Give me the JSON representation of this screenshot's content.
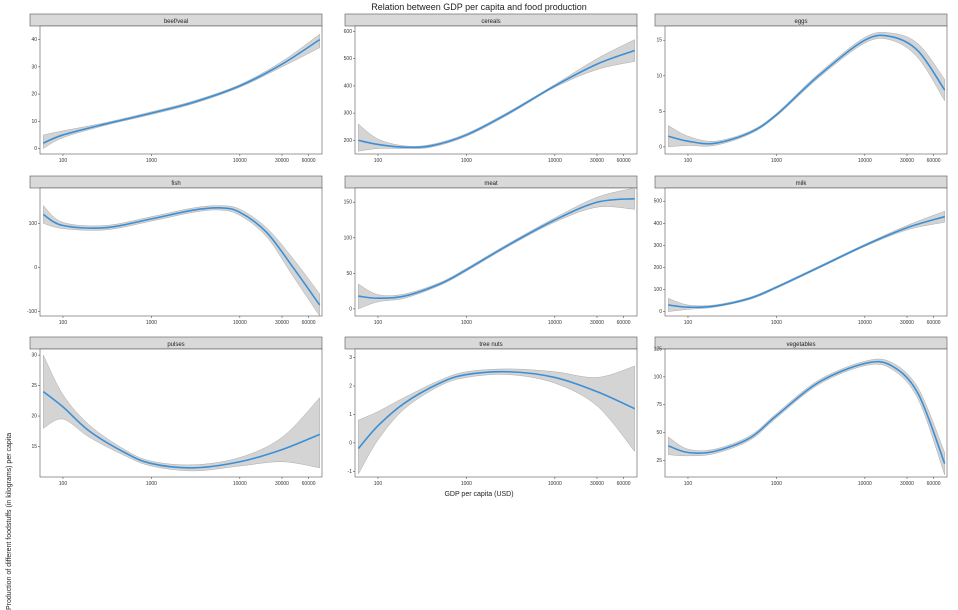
{
  "title": "Relation between GDP per capita and food production",
  "ylabel": "Production of different foodstuffs (in kilograms) per capita",
  "xlabel": "GDP per capita (USD)",
  "chart_data": [
    {
      "type": "line",
      "name": "beef/veal",
      "title": "beef/veal",
      "xscale": "log",
      "xlim": [
        55,
        85000
      ],
      "ylim": [
        -2,
        45
      ],
      "xticks": [
        {
          "v": 100,
          "label": "100"
        },
        {
          "v": 1000,
          "label": "1000"
        },
        {
          "v": 10000,
          "label": "10000"
        },
        {
          "v": 30000,
          "label": "30000"
        },
        {
          "v": 60000,
          "label": "60000"
        }
      ],
      "yticks": [
        {
          "v": 0,
          "label": "0"
        },
        {
          "v": 10,
          "label": "10"
        },
        {
          "v": 20,
          "label": "20"
        },
        {
          "v": 30,
          "label": "30"
        },
        {
          "v": 40,
          "label": "40"
        }
      ],
      "x": [
        60,
        100,
        300,
        1000,
        3000,
        10000,
        30000,
        80000
      ],
      "y": [
        2,
        5,
        9,
        13,
        17,
        23,
        31,
        40
      ],
      "lower": [
        0,
        4,
        8.5,
        12.5,
        16.5,
        22.5,
        30,
        37
      ],
      "upper": [
        5,
        6.5,
        9.5,
        13.5,
        17.5,
        23.5,
        32,
        42
      ]
    },
    {
      "type": "line",
      "name": "cereals",
      "title": "cereals",
      "xscale": "log",
      "xlim": [
        55,
        85000
      ],
      "ylim": [
        150,
        620
      ],
      "xticks": [
        {
          "v": 100,
          "label": "100"
        },
        {
          "v": 1000,
          "label": "1000"
        },
        {
          "v": 10000,
          "label": "10000"
        },
        {
          "v": 30000,
          "label": "30000"
        },
        {
          "v": 60000,
          "label": "60000"
        }
      ],
      "yticks": [
        {
          "v": 200,
          "label": "200"
        },
        {
          "v": 300,
          "label": "300"
        },
        {
          "v": 400,
          "label": "400"
        },
        {
          "v": 500,
          "label": "500"
        },
        {
          "v": 600,
          "label": "600"
        }
      ],
      "x": [
        60,
        100,
        200,
        400,
        1000,
        3000,
        10000,
        30000,
        80000
      ],
      "y": [
        200,
        185,
        175,
        180,
        220,
        300,
        400,
        480,
        530
      ],
      "lower": [
        160,
        170,
        170,
        175,
        215,
        295,
        395,
        460,
        490
      ],
      "upper": [
        260,
        205,
        180,
        185,
        225,
        305,
        405,
        500,
        570
      ]
    },
    {
      "type": "line",
      "name": "eggs",
      "title": "eggs",
      "xscale": "log",
      "xlim": [
        55,
        85000
      ],
      "ylim": [
        -1,
        17
      ],
      "xticks": [
        {
          "v": 100,
          "label": "100"
        },
        {
          "v": 1000,
          "label": "1000"
        },
        {
          "v": 10000,
          "label": "10000"
        },
        {
          "v": 30000,
          "label": "30000"
        },
        {
          "v": 60000,
          "label": "60000"
        }
      ],
      "yticks": [
        {
          "v": 0,
          "label": "0"
        },
        {
          "v": 5,
          "label": "5"
        },
        {
          "v": 10,
          "label": "10"
        },
        {
          "v": 15,
          "label": "15"
        }
      ],
      "x": [
        60,
        100,
        200,
        500,
        1000,
        3000,
        10000,
        20000,
        40000,
        80000
      ],
      "y": [
        1.5,
        0.8,
        0.5,
        2,
        4.5,
        10,
        15,
        15.5,
        13.5,
        8
      ],
      "lower": [
        0,
        0.2,
        0.2,
        1.8,
        4.3,
        9.7,
        14.6,
        15,
        12.5,
        6.5
      ],
      "upper": [
        3,
        1.5,
        0.8,
        2.2,
        4.7,
        10.3,
        15.4,
        16,
        14.5,
        9.5
      ]
    },
    {
      "type": "line",
      "name": "fish",
      "title": "fish",
      "xscale": "log",
      "xlim": [
        55,
        85000
      ],
      "ylim": [
        -110,
        180
      ],
      "xticks": [
        {
          "v": 100,
          "label": "100"
        },
        {
          "v": 1000,
          "label": "1000"
        },
        {
          "v": 10000,
          "label": "10000"
        },
        {
          "v": 30000,
          "label": "30000"
        },
        {
          "v": 60000,
          "label": "60000"
        }
      ],
      "yticks": [
        {
          "v": -100,
          "label": "-100"
        },
        {
          "v": 0,
          "label": "0"
        },
        {
          "v": 100,
          "label": "100"
        }
      ],
      "x": [
        60,
        100,
        300,
        1000,
        3000,
        6000,
        10000,
        20000,
        40000,
        80000
      ],
      "y": [
        120,
        95,
        90,
        110,
        130,
        135,
        125,
        80,
        0,
        -85
      ],
      "lower": [
        100,
        88,
        85,
        105,
        125,
        130,
        118,
        70,
        -20,
        -110
      ],
      "upper": [
        140,
        102,
        95,
        115,
        135,
        140,
        132,
        90,
        20,
        -60
      ]
    },
    {
      "type": "line",
      "name": "meat",
      "title": "meat",
      "xscale": "log",
      "xlim": [
        55,
        85000
      ],
      "ylim": [
        -10,
        170
      ],
      "xticks": [
        {
          "v": 100,
          "label": "100"
        },
        {
          "v": 1000,
          "label": "1000"
        },
        {
          "v": 10000,
          "label": "10000"
        },
        {
          "v": 30000,
          "label": "30000"
        },
        {
          "v": 60000,
          "label": "60000"
        }
      ],
      "yticks": [
        {
          "v": 0,
          "label": "0"
        },
        {
          "v": 50,
          "label": "50"
        },
        {
          "v": 100,
          "label": "100"
        },
        {
          "v": 150,
          "label": "150"
        }
      ],
      "x": [
        60,
        100,
        200,
        500,
        1000,
        3000,
        10000,
        30000,
        80000
      ],
      "y": [
        18,
        15,
        18,
        35,
        55,
        90,
        125,
        150,
        155
      ],
      "lower": [
        0,
        10,
        15,
        33,
        53,
        88,
        122,
        143,
        140
      ],
      "upper": [
        35,
        20,
        21,
        37,
        57,
        92,
        128,
        157,
        170
      ]
    },
    {
      "type": "line",
      "name": "milk",
      "title": "milk",
      "xscale": "log",
      "xlim": [
        55,
        85000
      ],
      "ylim": [
        -20,
        560
      ],
      "xticks": [
        {
          "v": 100,
          "label": "100"
        },
        {
          "v": 1000,
          "label": "1000"
        },
        {
          "v": 10000,
          "label": "10000"
        },
        {
          "v": 30000,
          "label": "30000"
        },
        {
          "v": 60000,
          "label": "60000"
        }
      ],
      "yticks": [
        {
          "v": 0,
          "label": "0"
        },
        {
          "v": 100,
          "label": "100"
        },
        {
          "v": 200,
          "label": "200"
        },
        {
          "v": 300,
          "label": "300"
        },
        {
          "v": 400,
          "label": "400"
        },
        {
          "v": 500,
          "label": "500"
        }
      ],
      "x": [
        60,
        100,
        200,
        500,
        1000,
        3000,
        10000,
        30000,
        80000
      ],
      "y": [
        30,
        20,
        25,
        60,
        110,
        200,
        300,
        380,
        430
      ],
      "lower": [
        0,
        10,
        20,
        55,
        105,
        195,
        295,
        370,
        405
      ],
      "upper": [
        60,
        30,
        30,
        65,
        115,
        205,
        305,
        390,
        455
      ]
    },
    {
      "type": "line",
      "name": "pulses",
      "title": "pulses",
      "xscale": "log",
      "xlim": [
        55,
        85000
      ],
      "ylim": [
        10,
        31
      ],
      "xticks": [
        {
          "v": 100,
          "label": "100"
        },
        {
          "v": 1000,
          "label": "1000"
        },
        {
          "v": 10000,
          "label": "10000"
        },
        {
          "v": 30000,
          "label": "30000"
        },
        {
          "v": 60000,
          "label": "60000"
        }
      ],
      "yticks": [
        {
          "v": 15,
          "label": "15"
        },
        {
          "v": 20,
          "label": "20"
        },
        {
          "v": 25,
          "label": "25"
        },
        {
          "v": 30,
          "label": "30"
        }
      ],
      "x": [
        60,
        100,
        200,
        500,
        1000,
        3000,
        10000,
        30000,
        80000
      ],
      "y": [
        24,
        21.5,
        17.5,
        14,
        12.2,
        11.5,
        12.5,
        14.5,
        17
      ],
      "lower": [
        18,
        19.5,
        16.5,
        13.5,
        11.8,
        11,
        11.8,
        12.5,
        11.5
      ],
      "upper": [
        30,
        23.5,
        18.5,
        14.5,
        12.6,
        12,
        13.2,
        16.5,
        23
      ]
    },
    {
      "type": "line",
      "name": "tree nuts",
      "title": "tree nuts",
      "xscale": "log",
      "xlim": [
        55,
        85000
      ],
      "ylim": [
        -1.2,
        3.3
      ],
      "xticks": [
        {
          "v": 100,
          "label": "100"
        },
        {
          "v": 1000,
          "label": "1000"
        },
        {
          "v": 10000,
          "label": "10000"
        },
        {
          "v": 30000,
          "label": "30000"
        },
        {
          "v": 60000,
          "label": "60000"
        }
      ],
      "yticks": [
        {
          "v": -1,
          "label": "-1"
        },
        {
          "v": 0,
          "label": "0"
        },
        {
          "v": 1,
          "label": "1"
        },
        {
          "v": 2,
          "label": "2"
        },
        {
          "v": 3,
          "label": "3"
        }
      ],
      "x": [
        60,
        100,
        200,
        500,
        1000,
        3000,
        10000,
        30000,
        80000
      ],
      "y": [
        -0.2,
        0.6,
        1.4,
        2.1,
        2.4,
        2.5,
        2.3,
        1.8,
        1.2
      ],
      "lower": [
        -1.1,
        0.1,
        1.2,
        2,
        2.3,
        2.4,
        2.1,
        1.3,
        -0.3
      ],
      "upper": [
        0.8,
        1.1,
        1.6,
        2.2,
        2.5,
        2.6,
        2.5,
        2.3,
        2.7
      ]
    },
    {
      "type": "line",
      "name": "vegetables",
      "title": "vegetables",
      "xscale": "log",
      "xlim": [
        55,
        85000
      ],
      "ylim": [
        10,
        125
      ],
      "xticks": [
        {
          "v": 100,
          "label": "100"
        },
        {
          "v": 1000,
          "label": "1000"
        },
        {
          "v": 10000,
          "label": "10000"
        },
        {
          "v": 30000,
          "label": "30000"
        },
        {
          "v": 60000,
          "label": "60000"
        }
      ],
      "yticks": [
        {
          "v": 25,
          "label": "25"
        },
        {
          "v": 50,
          "label": "50"
        },
        {
          "v": 75,
          "label": "75"
        },
        {
          "v": 100,
          "label": "100"
        },
        {
          "v": 125,
          "label": "125"
        }
      ],
      "x": [
        60,
        100,
        200,
        500,
        1000,
        3000,
        10000,
        20000,
        40000,
        80000
      ],
      "y": [
        38,
        32,
        33,
        45,
        65,
        95,
        112,
        110,
        85,
        22
      ],
      "lower": [
        30,
        29,
        31,
        43,
        63,
        93,
        110,
        107,
        80,
        12
      ],
      "upper": [
        46,
        35,
        35,
        47,
        67,
        97,
        114,
        113,
        90,
        32
      ]
    }
  ]
}
